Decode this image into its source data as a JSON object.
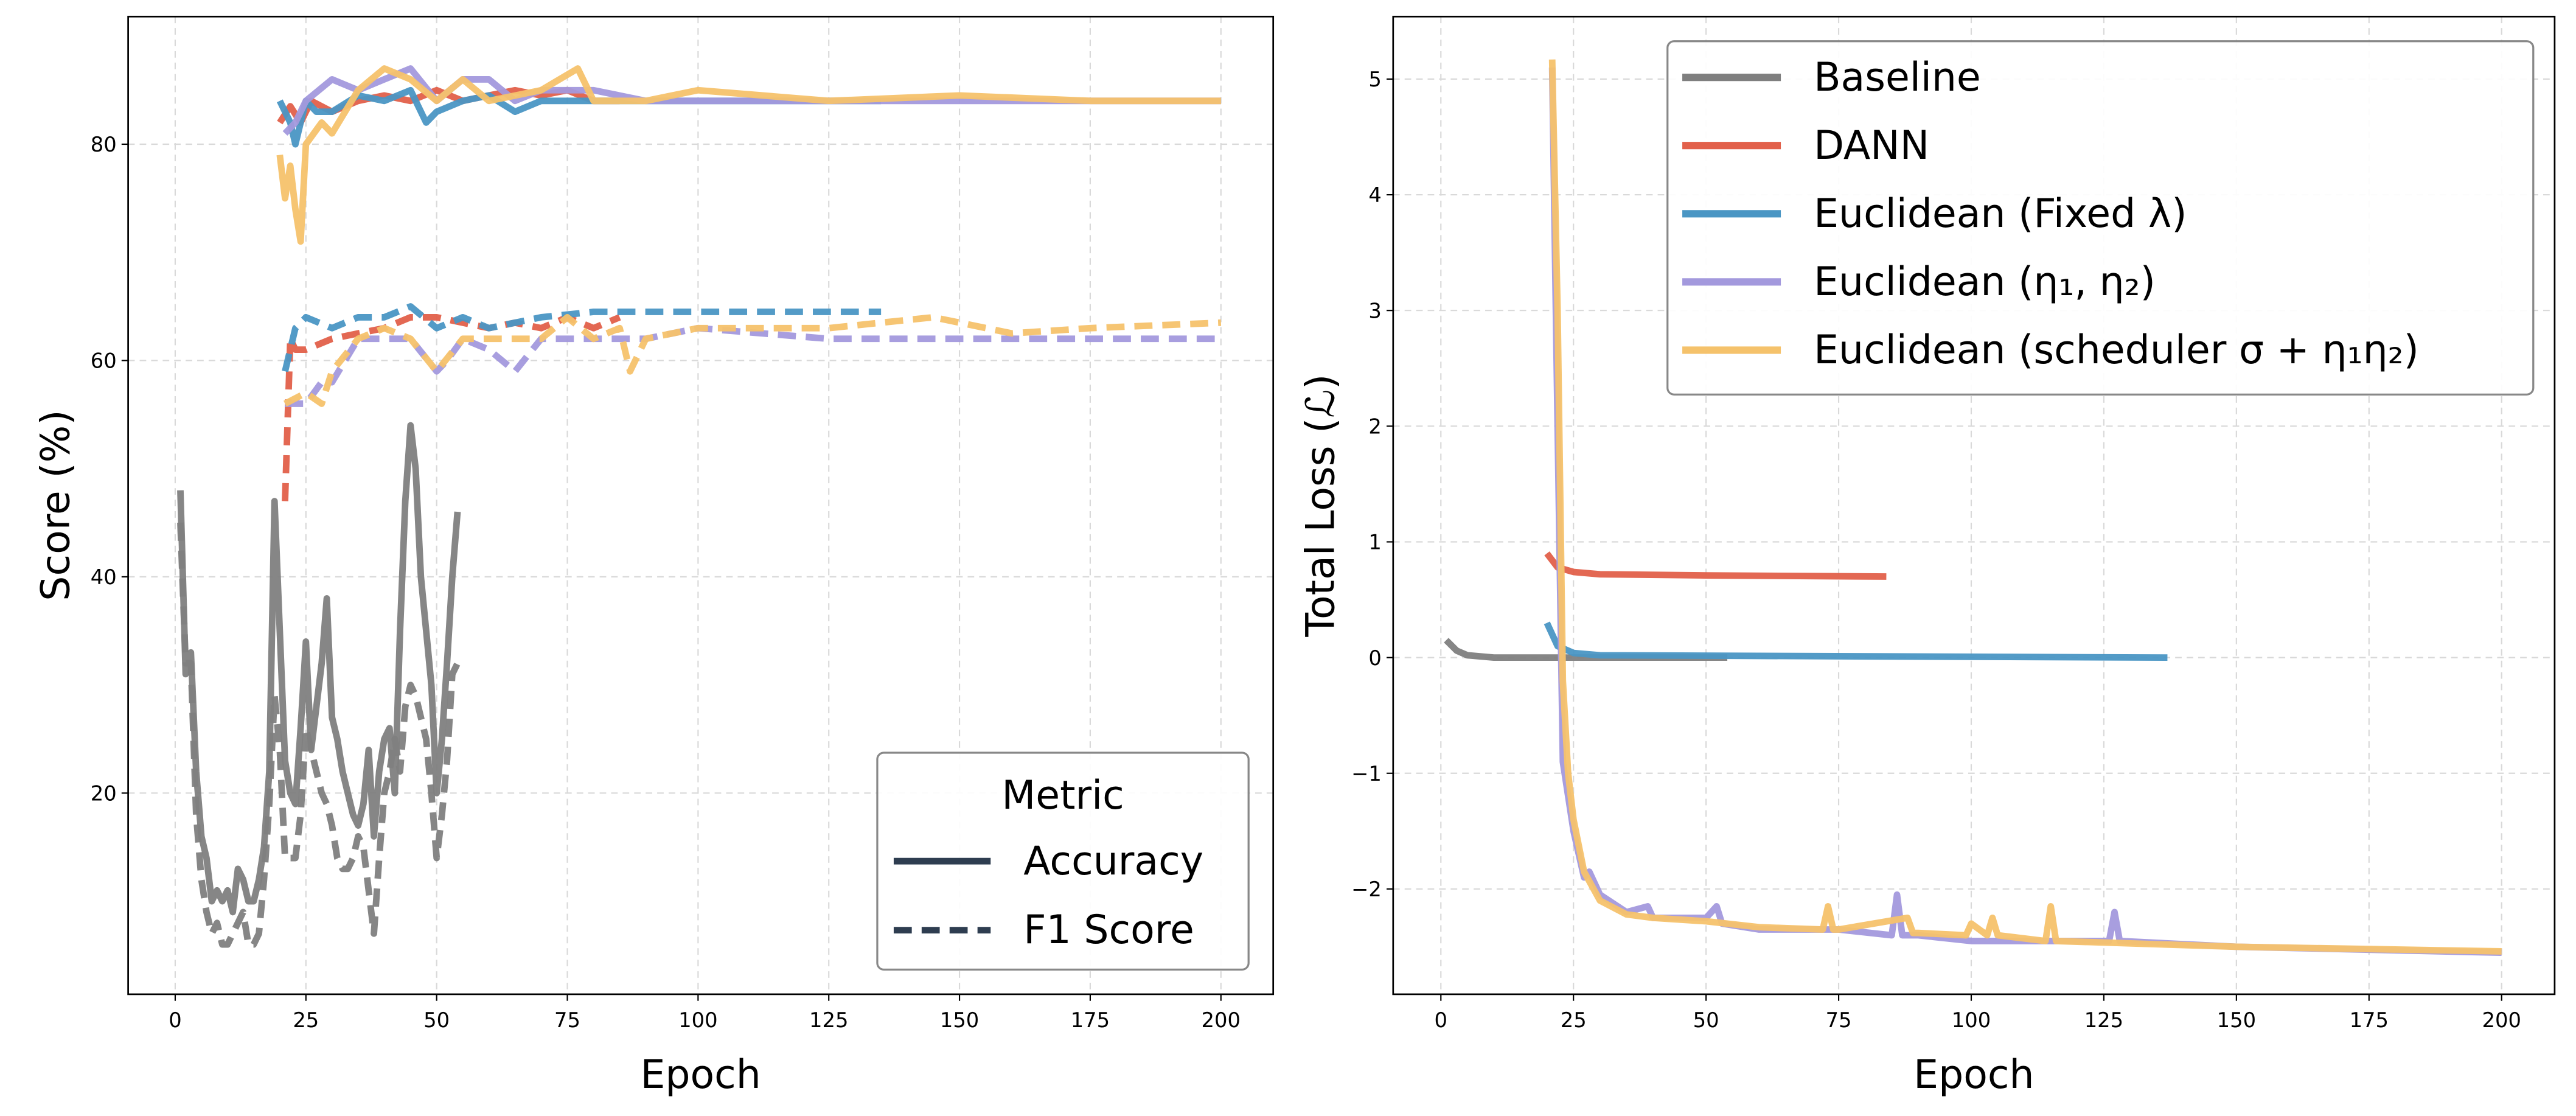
{
  "chart_data": [
    {
      "type": "line",
      "xlabel": "Epoch",
      "ylabel": "Score (%)",
      "xlim": [
        -9,
        210
      ],
      "ylim": [
        1.4,
        91.8
      ],
      "xticks": [
        0,
        25,
        50,
        75,
        100,
        125,
        150,
        175,
        200
      ],
      "yticks": [
        20,
        40,
        60,
        80
      ],
      "grid": true,
      "legend": {
        "title": "Metric",
        "placement": "bottom-right",
        "entries": [
          {
            "label": "Accuracy",
            "style": "solid"
          },
          {
            "label": "F1 Score",
            "style": "dashed"
          }
        ]
      },
      "series": [
        {
          "method": "Baseline",
          "metric": "Accuracy",
          "color": "#7f7f7f",
          "x": [
            1,
            2,
            3,
            4,
            5,
            6,
            7,
            8,
            9,
            10,
            11,
            12,
            13,
            14,
            15,
            16,
            17,
            18,
            19,
            20,
            21,
            22,
            23,
            24,
            25,
            26,
            27,
            28,
            29,
            30,
            31,
            32,
            33,
            34,
            35,
            36,
            37,
            38,
            39,
            40,
            41,
            42,
            43,
            44,
            45,
            46,
            47,
            48,
            49,
            50,
            51,
            52,
            53,
            54
          ],
          "y": [
            48,
            31,
            33,
            22,
            16,
            14,
            10,
            11,
            10,
            11,
            9,
            13,
            12,
            10,
            10,
            12,
            15,
            22,
            47,
            35,
            23,
            20,
            19,
            26,
            34,
            24,
            28,
            32,
            38,
            27,
            25,
            22,
            20,
            18,
            17,
            19,
            24,
            16,
            22,
            25,
            26,
            20,
            35,
            47,
            54,
            50,
            40,
            35,
            30,
            20,
            25,
            32,
            40,
            46
          ]
        },
        {
          "method": "Baseline",
          "metric": "F1 Score",
          "color": "#7f7f7f",
          "x": [
            1,
            2,
            3,
            4,
            5,
            6,
            7,
            8,
            9,
            10,
            11,
            12,
            13,
            14,
            15,
            16,
            17,
            18,
            19,
            20,
            21,
            22,
            23,
            24,
            25,
            26,
            27,
            28,
            29,
            30,
            31,
            32,
            33,
            34,
            35,
            36,
            37,
            38,
            39,
            40,
            41,
            42,
            43,
            44,
            45,
            46,
            47,
            48,
            49,
            50,
            51,
            52,
            53,
            54
          ],
          "y": [
            45,
            32,
            32,
            18,
            12,
            9,
            7,
            8,
            6,
            6,
            7,
            8,
            9,
            6,
            6,
            7,
            12,
            19,
            29,
            24,
            14,
            14,
            14,
            18,
            26,
            24,
            22,
            20,
            19,
            17,
            14,
            13,
            13,
            14,
            16,
            15,
            11,
            7,
            14,
            20,
            22,
            25,
            22,
            28,
            30,
            29,
            27,
            25,
            20,
            14,
            18,
            23,
            31,
            32
          ]
        },
        {
          "method": "DANN",
          "metric": "Accuracy",
          "color": "#e2604a",
          "x": [
            20,
            22,
            24,
            26,
            30,
            35,
            40,
            45,
            50,
            55,
            60,
            65,
            70,
            75,
            80,
            85
          ],
          "y": [
            82,
            83.5,
            82,
            84,
            83,
            84,
            84.5,
            84,
            85,
            84,
            84.5,
            85,
            84.5,
            85,
            84,
            84
          ]
        },
        {
          "method": "DANN",
          "metric": "F1 Score",
          "color": "#e2604a",
          "x": [
            21,
            22,
            23,
            25,
            30,
            35,
            40,
            45,
            50,
            55,
            60,
            65,
            70,
            75,
            80,
            85
          ],
          "y": [
            47,
            62,
            61,
            61,
            62,
            62.5,
            63,
            64,
            64,
            63.5,
            63,
            63.5,
            63,
            64,
            63,
            64
          ]
        },
        {
          "method": "Euclidean (Fixed λ)",
          "metric": "Accuracy",
          "color": "#4a96c4",
          "x": [
            20,
            22,
            23,
            25,
            27,
            30,
            35,
            40,
            45,
            48,
            50,
            55,
            60,
            65,
            70,
            80,
            100,
            135
          ],
          "y": [
            84,
            82,
            80,
            84,
            83,
            83,
            84.5,
            84,
            85,
            82,
            83,
            84,
            84.5,
            83,
            84,
            84,
            84,
            84
          ]
        },
        {
          "method": "Euclidean (Fixed λ)",
          "metric": "F1 Score",
          "color": "#4a96c4",
          "x": [
            21,
            23,
            25,
            30,
            35,
            40,
            45,
            50,
            55,
            60,
            70,
            80,
            135
          ],
          "y": [
            59,
            63,
            64,
            63,
            64,
            64,
            65,
            63,
            64,
            63,
            64,
            64.5,
            64.5
          ]
        },
        {
          "method": "Euclidean (η1, η2)",
          "metric": "Accuracy",
          "color": "#a399dd",
          "x": [
            21,
            23,
            25,
            30,
            35,
            40,
            45,
            50,
            55,
            60,
            65,
            70,
            80,
            90,
            100,
            125,
            150,
            175,
            200
          ],
          "y": [
            81,
            82,
            84,
            86,
            85,
            86,
            87,
            84,
            86,
            86,
            84,
            85,
            85,
            84,
            84,
            84,
            84,
            84,
            84
          ]
        },
        {
          "method": "Euclidean (η1, η2)",
          "metric": "F1 Score",
          "color": "#a399dd",
          "x": [
            21,
            23,
            25,
            28,
            30,
            35,
            40,
            45,
            50,
            52,
            55,
            60,
            65,
            70,
            80,
            90,
            100,
            125,
            150,
            175,
            200
          ],
          "y": [
            56,
            56,
            56,
            58,
            58,
            62,
            62,
            62,
            59,
            60,
            62,
            61,
            59,
            62,
            62,
            62,
            63,
            62,
            62,
            62,
            62
          ]
        },
        {
          "method": "Euclidean (scheduler σ + η1η2)",
          "metric": "Accuracy",
          "color": "#f5c26b",
          "x": [
            20,
            21,
            22,
            23,
            24,
            25,
            28,
            30,
            35,
            40,
            45,
            50,
            55,
            60,
            70,
            77,
            80,
            90,
            100,
            125,
            150,
            175,
            200
          ],
          "y": [
            79,
            75,
            78,
            74,
            71,
            80,
            82,
            81,
            85,
            87,
            86,
            84,
            86,
            84,
            85,
            87,
            84,
            84,
            85,
            84,
            84.5,
            84,
            84
          ]
        },
        {
          "method": "Euclidean (scheduler σ + η1η2)",
          "metric": "F1 Score",
          "color": "#f5c26b",
          "x": [
            21,
            25,
            28,
            30,
            35,
            40,
            45,
            50,
            55,
            60,
            70,
            75,
            80,
            85,
            87,
            90,
            100,
            125,
            145,
            160,
            175,
            200
          ],
          "y": [
            56,
            57,
            56,
            59,
            62,
            63,
            62,
            59,
            62,
            62,
            62,
            64,
            62,
            63,
            59,
            62,
            63,
            63,
            64,
            62.5,
            63,
            63.5
          ]
        }
      ]
    },
    {
      "type": "line",
      "xlabel": "Epoch",
      "ylabel": "Total Loss (ℒ)",
      "xlim": [
        -9,
        210
      ],
      "ylim": [
        -2.91,
        5.54
      ],
      "xticks": [
        0,
        25,
        50,
        75,
        100,
        125,
        150,
        175,
        200
      ],
      "yticks": [
        -2,
        -1,
        0,
        1,
        2,
        3,
        4,
        5
      ],
      "grid": true,
      "legend": {
        "placement": "top-right",
        "entries": [
          {
            "label": "Baseline",
            "color": "#7f7f7f"
          },
          {
            "label": "DANN",
            "color": "#e2604a"
          },
          {
            "label": "Euclidean (Fixed λ)",
            "color": "#4a96c4"
          },
          {
            "label": "Euclidean (η₁, η₂)",
            "color": "#a399dd"
          },
          {
            "label": "Euclidean (scheduler σ + η₁η₂)",
            "color": "#f5c26b"
          }
        ]
      },
      "series": [
        {
          "name": "Baseline",
          "color": "#7f7f7f",
          "x": [
            1,
            3,
            5,
            10,
            54
          ],
          "y": [
            0.15,
            0.06,
            0.02,
            0.0,
            0.0
          ]
        },
        {
          "name": "DANN",
          "color": "#e2604a",
          "x": [
            20,
            22,
            25,
            30,
            50,
            84
          ],
          "y": [
            0.9,
            0.78,
            0.74,
            0.72,
            0.71,
            0.7
          ]
        },
        {
          "name": "Euclidean (Fixed λ)",
          "color": "#4a96c4",
          "x": [
            20,
            22,
            25,
            30,
            137
          ],
          "y": [
            0.3,
            0.1,
            0.04,
            0.02,
            0.0
          ]
        },
        {
          "name": "Euclidean (η₁, η₂)",
          "color": "#a399dd",
          "x": [
            21,
            22,
            23,
            25,
            27,
            28,
            30,
            35,
            39,
            40,
            50,
            52,
            53,
            60,
            75,
            85,
            86,
            87,
            90,
            100,
            126,
            127,
            128,
            150,
            200
          ],
          "y": [
            5.1,
            2.0,
            -0.9,
            -1.5,
            -1.9,
            -1.85,
            -2.05,
            -2.2,
            -2.15,
            -2.25,
            -2.25,
            -2.15,
            -2.3,
            -2.35,
            -2.35,
            -2.4,
            -2.05,
            -2.4,
            -2.4,
            -2.45,
            -2.45,
            -2.2,
            -2.45,
            -2.5,
            -2.55
          ]
        },
        {
          "name": "Euclidean (scheduler σ + η₁η₂)",
          "color": "#f5c26b",
          "x": [
            21,
            22,
            23,
            24,
            25,
            27,
            30,
            35,
            40,
            50,
            60,
            72,
            73,
            74,
            75,
            88,
            89,
            90,
            99,
            100,
            103,
            104,
            105,
            114,
            115,
            116,
            150,
            200
          ],
          "y": [
            5.17,
            3.0,
            -0.2,
            -1.0,
            -1.4,
            -1.85,
            -2.1,
            -2.22,
            -2.25,
            -2.28,
            -2.33,
            -2.35,
            -2.15,
            -2.35,
            -2.35,
            -2.25,
            -2.38,
            -2.38,
            -2.4,
            -2.3,
            -2.4,
            -2.25,
            -2.4,
            -2.45,
            -2.15,
            -2.45,
            -2.5,
            -2.54
          ]
        }
      ]
    }
  ]
}
